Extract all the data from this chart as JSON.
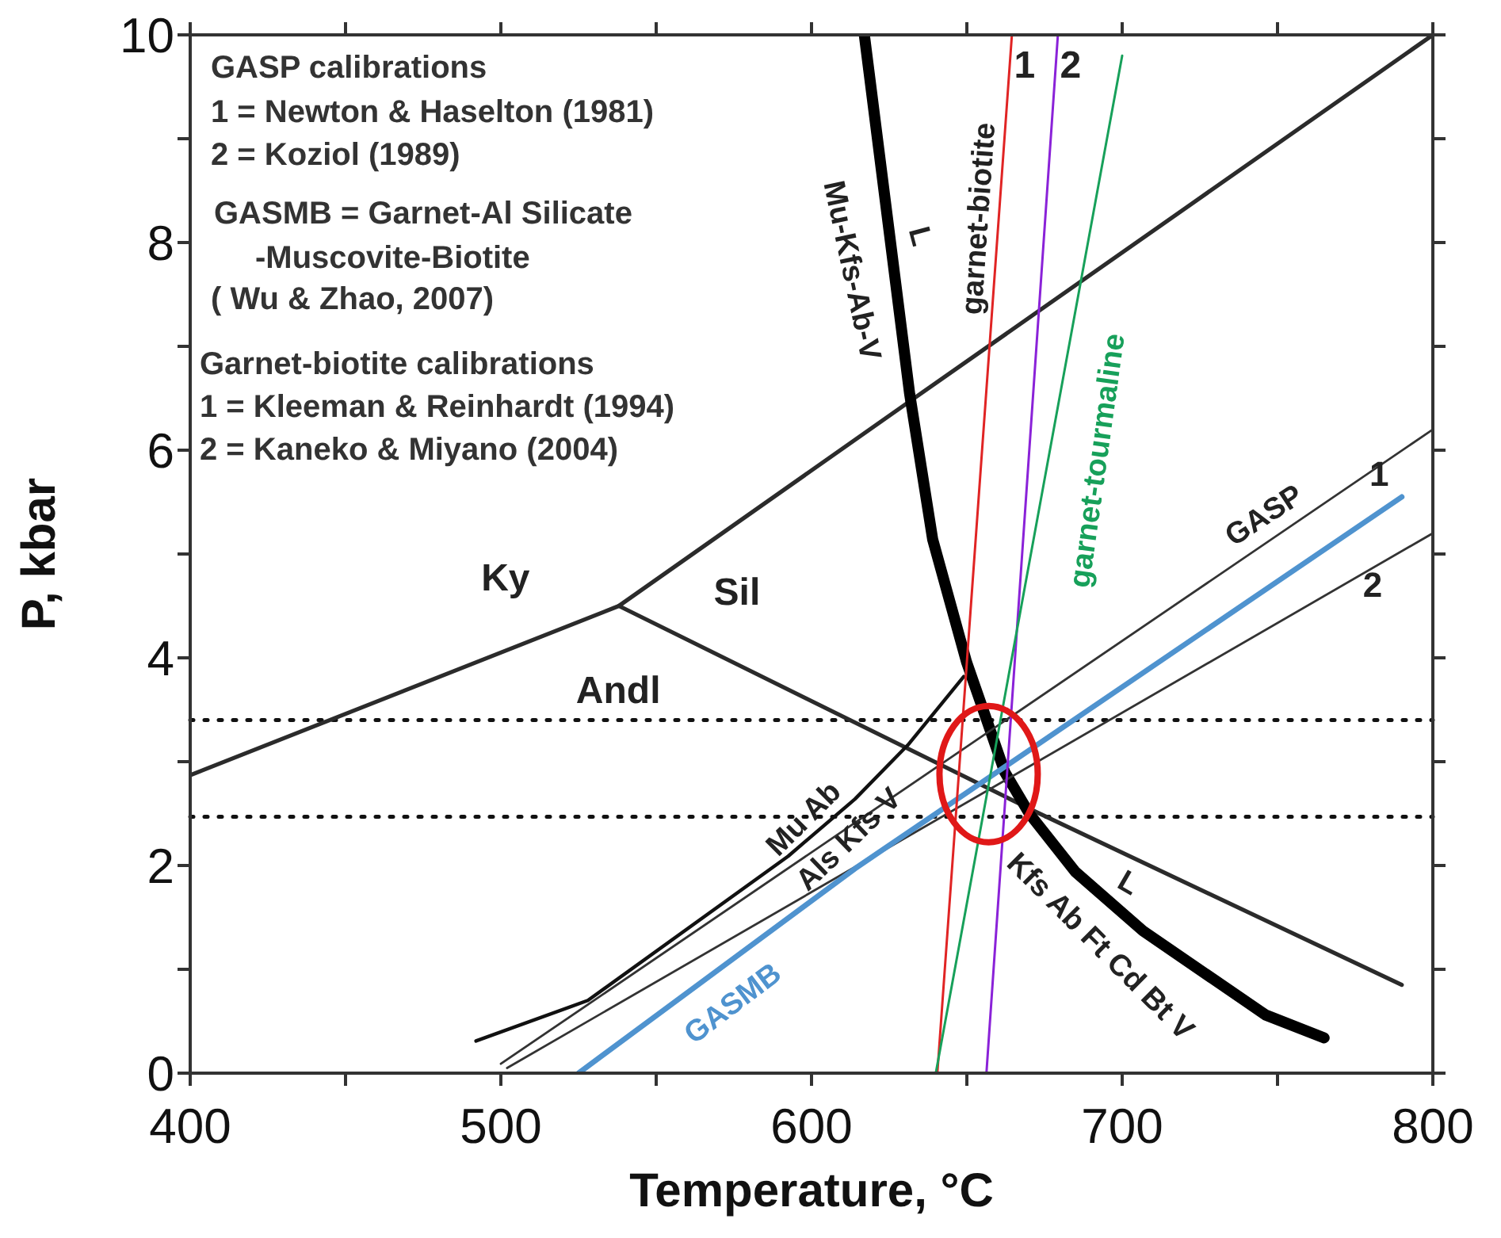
{
  "chart_data": {
    "type": "line",
    "xlabel": "Temperature, °C",
    "ylabel": "P, kbar",
    "xlim": [
      400,
      800
    ],
    "ylim": [
      0,
      10
    ],
    "xticks": [
      400,
      {
        "value": 450,
        "label": null
      },
      500,
      {
        "value": 550,
        "label": null
      },
      600,
      {
        "value": 650,
        "label": null
      },
      700,
      {
        "value": 750,
        "label": null
      },
      800
    ],
    "yticks": [
      0,
      {
        "value": 1,
        "label": null
      },
      2,
      {
        "value": 3,
        "label": null
      },
      4,
      {
        "value": 5,
        "label": null
      },
      6,
      {
        "value": 7,
        "label": null
      },
      8,
      {
        "value": 9,
        "label": null
      },
      10
    ],
    "line_style": "solid",
    "series": [
      {
        "color": "#2b2b2b",
        "x": [
          400,
          538,
          631.6,
          800
        ],
        "values": [
          2.87,
          4.5,
          6.47,
          10.0
        ]
      },
      {
        "color": "#2b2b2b",
        "x": [
          538,
          672,
          790
        ],
        "values": [
          4.5,
          2.52,
          0.85
        ]
      },
      {
        "color": "#000000",
        "x": [
          617,
          631.6,
          639,
          649.9,
          662.2,
          670.1,
          684.9,
          706.7,
          746.2,
          765
        ],
        "values": [
          10.0,
          6.54,
          5.14,
          3.96,
          2.9,
          2.5,
          1.94,
          1.37,
          0.56,
          0.34
        ]
      },
      {
        "color": "#111111",
        "x": [
          492,
          528,
          592.5,
          614,
          631,
          649
        ],
        "values": [
          0.31,
          0.7,
          2.09,
          2.64,
          3.16,
          3.82
        ]
      },
      {
        "color": "#333333",
        "x": [
          500,
          800
        ],
        "values": [
          0.09,
          6.2
        ]
      },
      {
        "color": "#333333",
        "x": [
          502,
          800
        ],
        "values": [
          0.05,
          5.2
        ]
      },
      {
        "color": "#4f93cf",
        "x": [
          525,
          614,
          790
        ],
        "values": [
          0,
          1.97,
          5.55
        ]
      },
      {
        "color": "#e02424",
        "x": [
          640.5,
          664.5
        ],
        "values": [
          0,
          10
        ]
      },
      {
        "color": "#8a22d8",
        "x": [
          656.3,
          679.3
        ],
        "values": [
          0,
          10
        ]
      },
      {
        "color": "#17a05a",
        "x": [
          640,
          700
        ],
        "values": [
          0,
          9.8
        ]
      }
    ],
    "ref_lines": [
      {
        "axis": "y",
        "value": 3.4,
        "color": "#111111",
        "line_style": "dotted"
      },
      {
        "axis": "y",
        "value": 2.47,
        "color": "#111111",
        "line_style": "dotted"
      }
    ],
    "annotations": [
      "GASP calibrations",
      "1 = Newton & Haselton (1981)",
      "2 = Koziol (1989)",
      "GASMB = Garnet-Al Silicate",
      "-Muscovite-Biotite",
      "( Wu & Zhao, 2007)",
      "Garnet-biotite calibrations",
      "1 = Kleeman & Reinhardt (1994)",
      "2 = Kaneko & Miyano (2004)",
      "Ky",
      "Sil",
      "Andl",
      "Mu-Kfs-Ab-V",
      "L",
      "garnet-biotite",
      {
        "text": "1",
        "x": 664.5,
        "y": 9.71
      },
      {
        "text": "2",
        "x": 679.3,
        "y": 9.71
      },
      "garnet-tourmaline",
      "GASP",
      {
        "text": "1",
        "x": 782.7,
        "y": 5.78
      },
      {
        "text": "2",
        "x": 780.6,
        "y": 4.83
      },
      {
        "text": "Mu Ab",
        "x": 597.5,
        "y": 2.45
      },
      "Als Kfs V",
      "Kfs Ab Ft Cd Bt V",
      "L",
      "GASMB"
    ]
  }
}
